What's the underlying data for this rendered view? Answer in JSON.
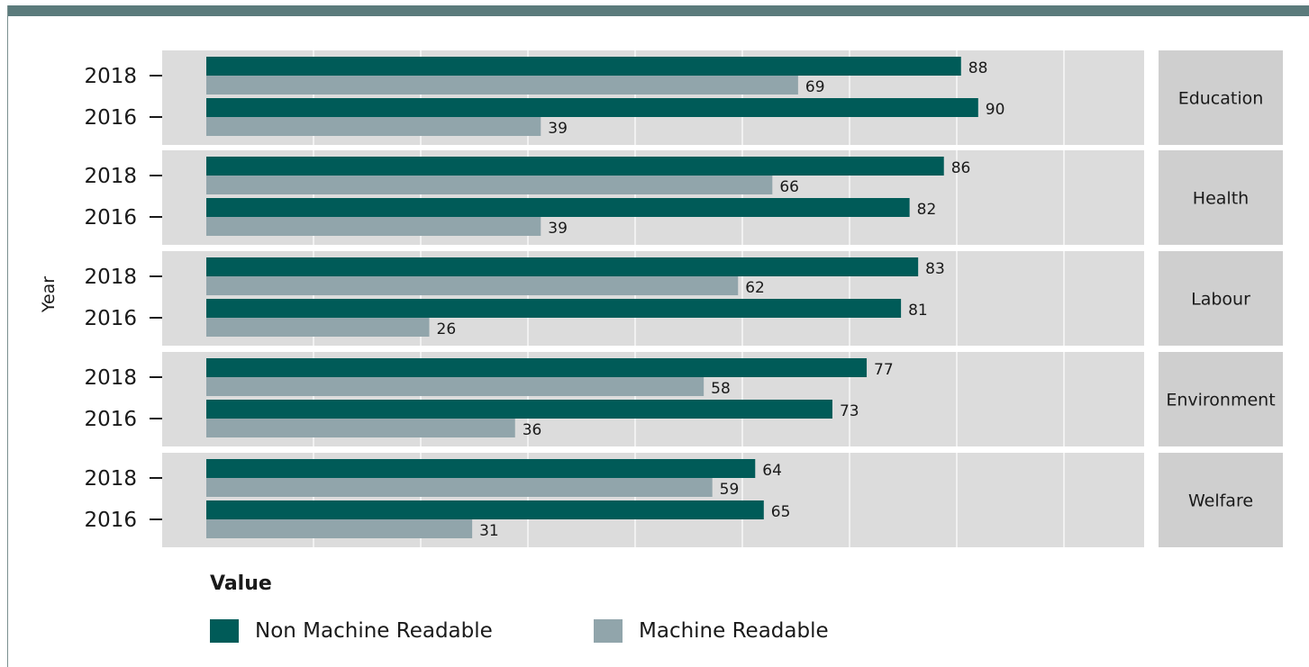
{
  "chart_data": {
    "type": "bar",
    "orientation": "horizontal",
    "facets": [
      "Education",
      "Health",
      "Labour",
      "Environment",
      "Welfare"
    ],
    "years": [
      "2018",
      "2016"
    ],
    "series": [
      {
        "name": "Non Machine Readable",
        "color": "#005b58",
        "values": {
          "Education": {
            "2018": 88,
            "2016": 90
          },
          "Health": {
            "2018": 86,
            "2016": 82
          },
          "Labour": {
            "2018": 83,
            "2016": 81
          },
          "Environment": {
            "2018": 77,
            "2016": 73
          },
          "Welfare": {
            "2018": 64,
            "2016": 65
          }
        }
      },
      {
        "name": "Machine Readable",
        "color": "#91a5ab",
        "values": {
          "Education": {
            "2018": 69,
            "2016": 39
          },
          "Health": {
            "2018": 66,
            "2016": 39
          },
          "Labour": {
            "2018": 62,
            "2016": 26
          },
          "Environment": {
            "2018": 58,
            "2016": 36
          },
          "Welfare": {
            "2018": 59,
            "2016": 31
          }
        }
      }
    ],
    "ylabel": "Year",
    "xlabel": "",
    "xlim": [
      0,
      110
    ],
    "grid": true,
    "legend_title": "Value",
    "legend_position": "bottom"
  }
}
